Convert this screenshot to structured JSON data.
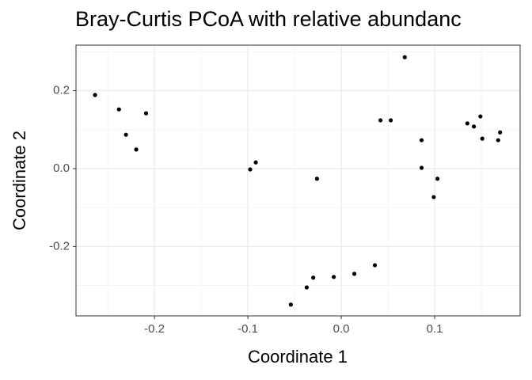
{
  "chart_data": {
    "type": "scatter",
    "title": "Bray-Curtis PCoA with relative abundanc",
    "x_label": "Coordinate 1",
    "y_label": "Coordinate 2",
    "color": "#000000",
    "grid": true,
    "xlim": [
      -0.284,
      0.1915
    ],
    "ylim": [
      -0.378,
      0.317
    ],
    "xticks": [
      -0.2,
      -0.1,
      {
        "value": 0,
        "label": "0.0"
      },
      0.1
    ],
    "yticks": [
      -0.2,
      {
        "value": 0,
        "label": "0.0"
      },
      0.2
    ],
    "x": [
      -0.2636,
      -0.238,
      -0.2305,
      -0.2195,
      -0.209,
      -0.0975,
      -0.0915,
      -0.026,
      -0.054,
      -0.037,
      -0.03,
      -0.008,
      0.014,
      0.036,
      0.042,
      0.053,
      0.068,
      0.086,
      0.086,
      0.099,
      0.103,
      0.135,
      0.142,
      0.149,
      0.151,
      0.168,
      0.17
    ],
    "values": [
      0.189,
      0.152,
      0.087,
      0.049,
      0.142,
      -0.002,
      0.016,
      -0.026,
      -0.349,
      -0.305,
      -0.28,
      -0.278,
      -0.27,
      -0.248,
      0.124,
      0.124,
      0.286,
      0.073,
      0.002,
      -0.073,
      -0.026,
      0.116,
      0.108,
      0.134,
      0.077,
      0.073,
      0.093
    ]
  }
}
